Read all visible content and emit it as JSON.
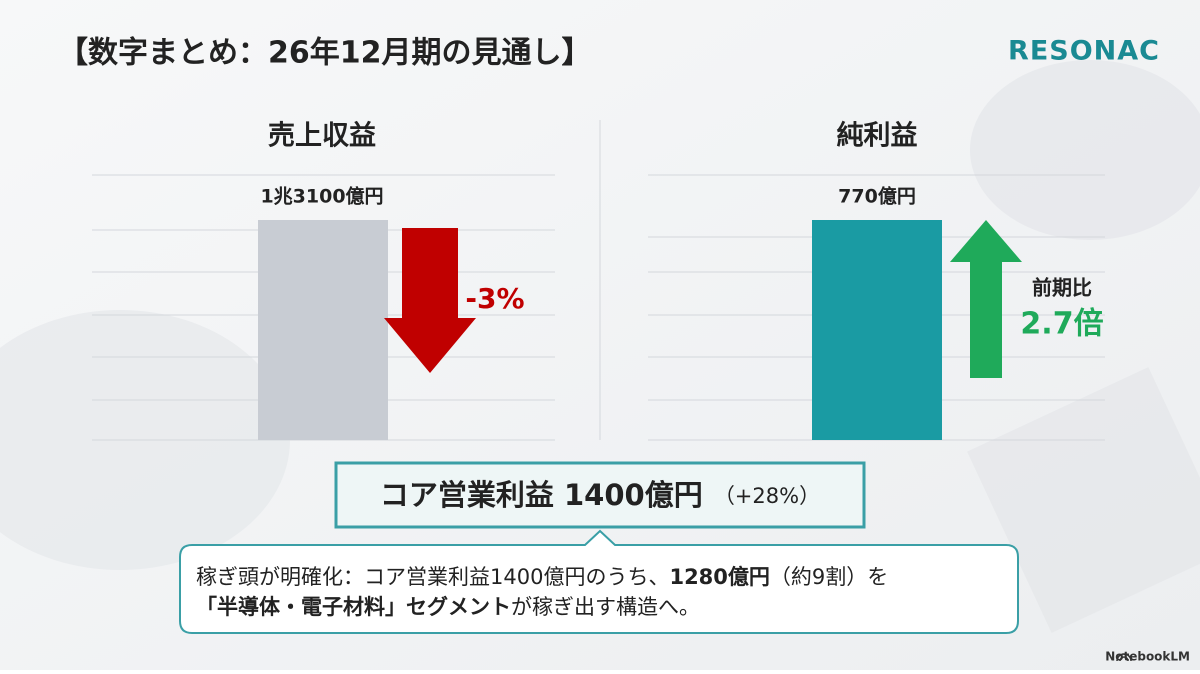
{
  "header": {
    "title": "【数字まとめ：26年12月期の見通し】",
    "logo": "RESONAC"
  },
  "panels": [
    {
      "title": "売上収益",
      "value_label": "1兆3100億円",
      "change": "-3%"
    },
    {
      "title": "純利益",
      "value_label": "770億円",
      "change_caption": "前期比",
      "change": "2.7倍"
    }
  ],
  "highlight": {
    "main": "コア営業利益 1400億円",
    "sub": "（+28%）"
  },
  "callout": {
    "line1": [
      "稼ぎ頭が明確化：コア営業利益1400億円のうち、",
      "1280億円",
      "（約9割）を"
    ],
    "line2": [
      "「半導体・電子材料」セグメント",
      "が稼ぎ出す構造へ。"
    ]
  },
  "footer": {
    "brand": "NotebookLM"
  }
}
